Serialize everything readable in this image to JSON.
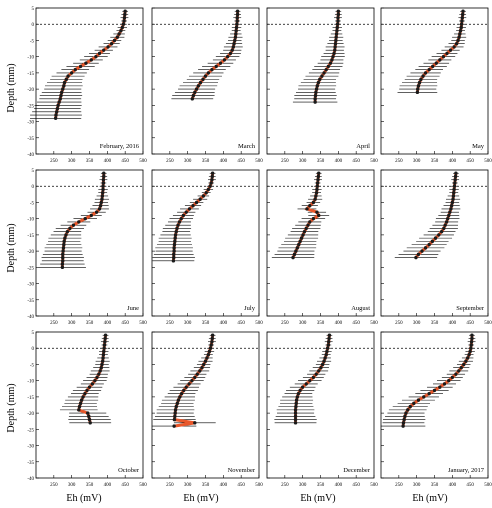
{
  "figure": {
    "ylabel": "Depth (mm)",
    "xlabel": "Eh (mV)"
  },
  "style": {
    "mean_color": "#e8572a",
    "point_color": "#1a1a1a",
    "bar_color": "#000000"
  },
  "axes": {
    "xlim": [
      200,
      500
    ],
    "ylim": [
      -40,
      5
    ],
    "xticks": [
      "250",
      "300",
      "350",
      "400",
      "450",
      "500"
    ],
    "yticks": [
      "5",
      "0",
      "-5",
      "-10",
      "-15",
      "-20",
      "-25",
      "-30",
      "-35",
      "-40"
    ],
    "surface_line_depth": 0,
    "grid": false
  },
  "chart_data": [
    {
      "type": "line",
      "title": "February, 2016",
      "x": [
        450,
        449,
        448,
        447,
        445,
        442,
        438,
        433,
        428,
        420,
        412,
        402,
        390,
        378,
        368,
        355,
        340,
        325,
        310,
        300,
        290,
        285,
        280,
        278,
        275,
        272,
        270,
        268,
        265,
        262,
        260,
        258,
        256,
        255
      ],
      "y": [
        4,
        3,
        2,
        1,
        0,
        -1,
        -2,
        -3,
        -4,
        -5,
        -6,
        -7,
        -8,
        -9,
        -10,
        -11,
        -12,
        -13,
        -14,
        -15,
        -16,
        -17,
        -18,
        -19,
        -20,
        -21,
        -22,
        -23,
        -24,
        -25,
        -26,
        -27,
        -28,
        -29
      ]
    },
    {
      "type": "line",
      "title": "March",
      "x": [
        440,
        440,
        439,
        439,
        438,
        437,
        436,
        435,
        434,
        432,
        430,
        428,
        425,
        420,
        412,
        403,
        392,
        380,
        368,
        358,
        350,
        343,
        336,
        330,
        325,
        320,
        316,
        313
      ],
      "y": [
        4,
        3,
        2,
        1,
        0,
        -1,
        -2,
        -3,
        -4,
        -5,
        -6,
        -7,
        -8,
        -9,
        -10,
        -11,
        -12,
        -13,
        -14,
        -15,
        -16,
        -17,
        -18,
        -19,
        -20,
        -21,
        -22,
        -23
      ]
    },
    {
      "type": "line",
      "title": "April",
      "x": [
        400,
        400,
        399,
        399,
        398,
        397,
        396,
        395,
        394,
        393,
        392,
        391,
        390,
        388,
        385,
        382,
        378,
        372,
        366,
        360,
        354,
        348,
        344,
        341,
        339,
        337,
        336,
        335,
        335
      ],
      "y": [
        4,
        3,
        2,
        1,
        0,
        -1,
        -2,
        -3,
        -4,
        -5,
        -6,
        -7,
        -8,
        -9,
        -10,
        -11,
        -12,
        -13,
        -14,
        -15,
        -16,
        -17,
        -18,
        -19,
        -20,
        -21,
        -22,
        -23,
        -24
      ]
    },
    {
      "type": "line",
      "title": "May",
      "x": [
        430,
        429,
        428,
        427,
        426,
        425,
        423,
        421,
        419,
        416,
        412,
        405,
        395,
        385,
        375,
        365,
        355,
        345,
        335,
        325,
        318,
        312,
        308,
        305,
        303,
        302
      ],
      "y": [
        4,
        3,
        2,
        1,
        0,
        -1,
        -2,
        -3,
        -4,
        -5,
        -6,
        -7,
        -8,
        -9,
        -10,
        -11,
        -12,
        -13,
        -14,
        -15,
        -16,
        -17,
        -18,
        -19,
        -20,
        -21
      ]
    },
    {
      "type": "line",
      "title": "June",
      "x": [
        390,
        390,
        389,
        389,
        388,
        388,
        387,
        386,
        385,
        383,
        381,
        378,
        370,
        355,
        338,
        320,
        305,
        295,
        288,
        284,
        281,
        279,
        278,
        277,
        276,
        275,
        275,
        275,
        274,
        274
      ],
      "y": [
        4,
        3,
        2,
        1,
        0,
        -1,
        -2,
        -3,
        -4,
        -5,
        -6,
        -7,
        -8,
        -9,
        -10,
        -11,
        -12,
        -13,
        -14,
        -15,
        -16,
        -17,
        -18,
        -19,
        -20,
        -21,
        -22,
        -23,
        -24,
        -25
      ]
    },
    {
      "type": "line",
      "title": "July",
      "x": [
        370,
        369,
        368,
        366,
        363,
        358,
        352,
        344,
        335,
        325,
        315,
        305,
        296,
        288,
        282,
        277,
        273,
        270,
        268,
        266,
        265,
        264,
        263,
        262,
        262,
        261,
        261,
        260
      ],
      "y": [
        4,
        3,
        2,
        1,
        0,
        -1,
        -2,
        -3,
        -4,
        -5,
        -6,
        -7,
        -8,
        -9,
        -10,
        -11,
        -12,
        -13,
        -14,
        -15,
        -16,
        -17,
        -18,
        -19,
        -20,
        -21,
        -22,
        -23
      ]
    },
    {
      "type": "line",
      "title": "August",
      "x": [
        345,
        344,
        343,
        342,
        341,
        340,
        339,
        337,
        335,
        330,
        320,
        312,
        340,
        345,
        330,
        320,
        315,
        310,
        305,
        301,
        297,
        293,
        289,
        285,
        281,
        277,
        273
      ],
      "y": [
        4,
        3,
        2,
        1,
        0,
        -1,
        -2,
        -3,
        -4,
        -5,
        -6,
        -7,
        -8,
        -9,
        -10,
        -11,
        -12,
        -13,
        -14,
        -15,
        -16,
        -17,
        -18,
        -19,
        -20,
        -21,
        -22
      ]
    },
    {
      "type": "line",
      "title": "September",
      "x": [
        410,
        409,
        408,
        407,
        406,
        405,
        404,
        403,
        402,
        400,
        398,
        396,
        393,
        390,
        387,
        384,
        380,
        376,
        370,
        362,
        353,
        344,
        335,
        325,
        315,
        305,
        298
      ],
      "y": [
        4,
        3,
        2,
        1,
        0,
        -1,
        -2,
        -3,
        -4,
        -5,
        -6,
        -7,
        -8,
        -9,
        -10,
        -11,
        -12,
        -13,
        -14,
        -15,
        -16,
        -17,
        -18,
        -19,
        -20,
        -21,
        -22
      ]
    },
    {
      "type": "line",
      "title": "October",
      "x": [
        395,
        394,
        393,
        392,
        391,
        390,
        389,
        388,
        387,
        385,
        383,
        380,
        376,
        371,
        365,
        358,
        350,
        343,
        337,
        332,
        328,
        325,
        322,
        320,
        345,
        348,
        350,
        352
      ],
      "y": [
        4,
        3,
        2,
        1,
        0,
        -1,
        -2,
        -3,
        -4,
        -5,
        -6,
        -7,
        -8,
        -9,
        -10,
        -11,
        -12,
        -13,
        -14,
        -15,
        -16,
        -17,
        -18,
        -19,
        -20,
        -21,
        -22,
        -23
      ]
    },
    {
      "type": "line",
      "title": "November",
      "x": [
        370,
        369,
        368,
        366,
        364,
        361,
        358,
        354,
        350,
        345,
        340,
        334,
        327,
        320,
        312,
        304,
        296,
        289,
        283,
        278,
        274,
        271,
        268,
        266,
        265,
        264,
        263,
        320,
        262
      ],
      "y": [
        4,
        3,
        2,
        1,
        0,
        -1,
        -2,
        -3,
        -4,
        -5,
        -6,
        -7,
        -8,
        -9,
        -10,
        -11,
        -12,
        -13,
        -14,
        -15,
        -16,
        -17,
        -18,
        -19,
        -20,
        -21,
        -22,
        -23,
        -24
      ]
    },
    {
      "type": "line",
      "title": "December",
      "x": [
        375,
        374,
        373,
        372,
        370,
        368,
        366,
        363,
        360,
        356,
        351,
        345,
        338,
        330,
        320,
        310,
        300,
        293,
        288,
        285,
        283,
        282,
        281,
        280,
        280,
        280,
        280,
        280
      ],
      "y": [
        4,
        3,
        2,
        1,
        0,
        -1,
        -2,
        -3,
        -4,
        -5,
        -6,
        -7,
        -8,
        -9,
        -10,
        -11,
        -12,
        -13,
        -14,
        -15,
        -16,
        -17,
        -18,
        -19,
        -20,
        -21,
        -22,
        -23
      ]
    },
    {
      "type": "line",
      "title": "January, 2017",
      "x": [
        455,
        455,
        454,
        453,
        452,
        450,
        447,
        443,
        438,
        432,
        425,
        418,
        410,
        400,
        390,
        378,
        365,
        350,
        335,
        320,
        305,
        292,
        282,
        275,
        270,
        267,
        265,
        263,
        262
      ],
      "y": [
        4,
        3,
        2,
        1,
        0,
        -1,
        -2,
        -3,
        -4,
        -5,
        -6,
        -7,
        -8,
        -9,
        -10,
        -11,
        -12,
        -13,
        -14,
        -15,
        -16,
        -17,
        -18,
        -19,
        -20,
        -21,
        -22,
        -23,
        -24
      ]
    }
  ]
}
